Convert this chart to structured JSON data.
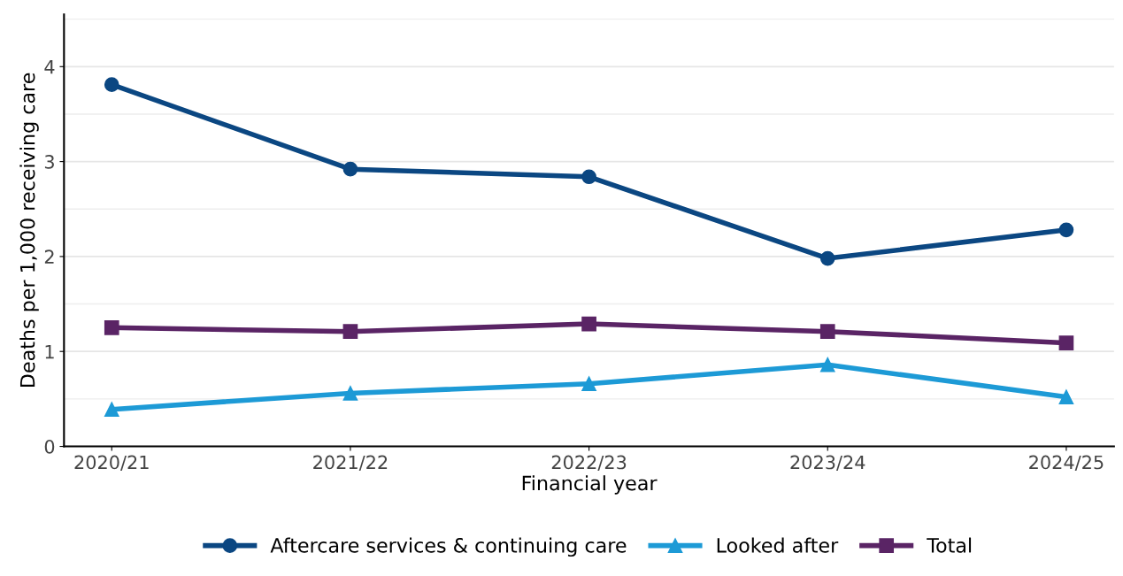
{
  "chart_data": {
    "type": "line",
    "xlabel": "Financial year",
    "ylabel": "Deaths per 1,000 receiving care",
    "categories": [
      "2020/21",
      "2021/22",
      "2022/23",
      "2023/24",
      "2024/25"
    ],
    "series": [
      {
        "name": "Aftercare services & continuing care",
        "color": "#0b4782",
        "marker": "circle",
        "values": [
          3.81,
          2.92,
          2.84,
          1.98,
          2.28
        ]
      },
      {
        "name": "Looked after",
        "color": "#1d9ad6",
        "marker": "triangle",
        "values": [
          0.39,
          0.56,
          0.66,
          0.86,
          0.52
        ]
      },
      {
        "name": "Total",
        "color": "#5a2465",
        "marker": "square",
        "values": [
          1.25,
          1.21,
          1.29,
          1.21,
          1.09
        ]
      }
    ],
    "ylim": [
      0,
      4.55
    ],
    "yticks": [
      0,
      1,
      2,
      3,
      4
    ],
    "grid": "y",
    "legend": "bottom",
    "line_style": "solid"
  }
}
